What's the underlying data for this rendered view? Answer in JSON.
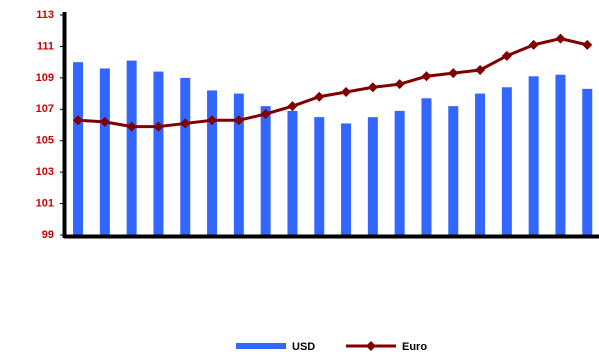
{
  "chart_data": {
    "type": "bar_line",
    "categories": [
      null,
      null,
      null,
      null,
      null,
      null,
      null,
      null,
      null,
      null,
      null,
      null,
      null,
      null,
      null,
      null,
      null,
      null,
      null,
      null
    ],
    "series": [
      {
        "name": "USD",
        "type": "bar",
        "color": "#3366ff",
        "values": [
          110.0,
          109.6,
          110.1,
          109.4,
          109.0,
          108.2,
          108.0,
          107.2,
          106.9,
          106.5,
          106.1,
          106.5,
          106.9,
          107.7,
          107.2,
          108.0,
          108.4,
          109.1,
          109.2,
          108.3
        ]
      },
      {
        "name": "Euro",
        "type": "line",
        "color": "#800000",
        "values": [
          106.3,
          106.2,
          105.9,
          105.9,
          106.1,
          106.3,
          106.3,
          106.7,
          107.2,
          107.8,
          108.1,
          108.4,
          108.6,
          109.1,
          109.3,
          109.5,
          110.4,
          111.1,
          111.5,
          111.1
        ]
      }
    ],
    "ylim": [
      99,
      113
    ],
    "yticks": [
      99,
      101,
      103,
      105,
      107,
      109,
      111,
      113
    ],
    "legend": "bottom"
  }
}
